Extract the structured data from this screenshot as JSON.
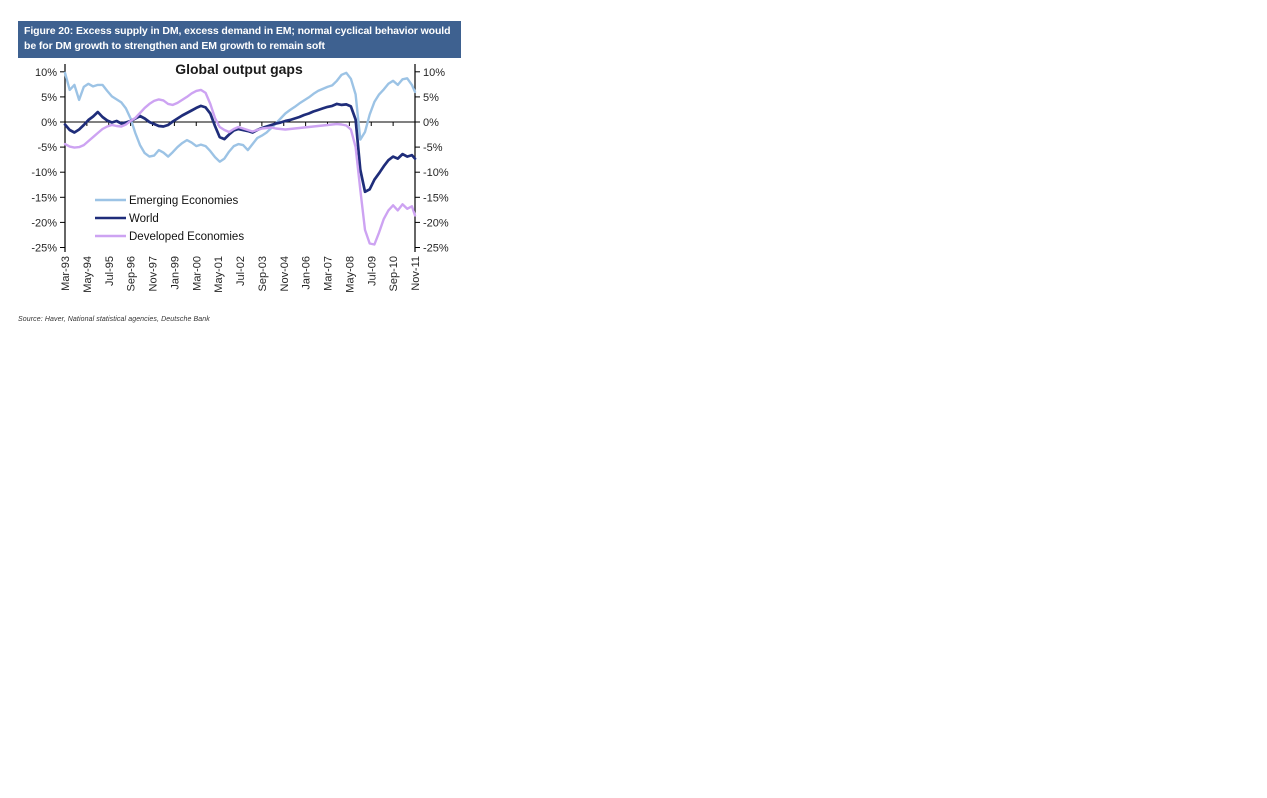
{
  "figure": {
    "caption_lines": [
      "Figure 20: Excess supply in DM, excess demand in EM; normal cyclical behavior would",
      "be for DM growth to strengthen and EM growth to remain soft"
    ],
    "source": "Source: Haver, National statistical agencies, Deutsche Bank"
  },
  "colors": {
    "caption_bg": "#3E6190",
    "caption_text": "#FFFFFF",
    "axis": "#000000",
    "tick_label": "#262626"
  },
  "chart_data": {
    "type": "line",
    "title": "Global output gaps",
    "xlabel": "",
    "ylabel": "",
    "y_tick_suffix": "%",
    "y_ticks": [
      10,
      5,
      0,
      -5,
      -10,
      -15,
      -20,
      -25
    ],
    "ylim": [
      -25,
      10
    ],
    "grid": false,
    "legend_position": "inside-lower-left",
    "x_tick_labels": [
      "Mar-93",
      "May-94",
      "Jul-95",
      "Sep-96",
      "Nov-97",
      "Jan-99",
      "Mar-00",
      "May-01",
      "Jul-02",
      "Sep-03",
      "Nov-04",
      "Jan-06",
      "Mar-07",
      "May-08",
      "Jul-09",
      "Sep-10",
      "Nov-11"
    ],
    "x_tick_months": [
      0,
      14,
      28,
      42,
      56,
      70,
      84,
      98,
      112,
      126,
      140,
      154,
      168,
      182,
      196,
      210,
      224
    ],
    "x_total_months": 224,
    "month_step": 3,
    "series": [
      {
        "name": "Emerging Economies",
        "color": "#9CC3E5",
        "width": 2.4,
        "values": [
          9.8,
          6.4,
          7.4,
          4.4,
          7.0,
          7.6,
          7.1,
          7.4,
          7.4,
          6.2,
          5.1,
          4.5,
          3.9,
          2.7,
          0.7,
          -2.2,
          -4.6,
          -6.2,
          -6.9,
          -6.7,
          -5.6,
          -6.1,
          -6.9,
          -6.0,
          -5.0,
          -4.2,
          -3.6,
          -4.1,
          -4.8,
          -4.5,
          -4.8,
          -5.8,
          -7.0,
          -7.9,
          -7.3,
          -5.9,
          -4.8,
          -4.4,
          -4.6,
          -5.6,
          -4.4,
          -3.2,
          -2.7,
          -2.1,
          -1.2,
          -0.3,
          0.7,
          1.7,
          2.4,
          3.0,
          3.7,
          4.3,
          4.9,
          5.6,
          6.2,
          6.6,
          7.0,
          7.3,
          8.2,
          9.4,
          9.8,
          8.6,
          5.5,
          -3.5,
          -2.0,
          1.5,
          4.0,
          5.5,
          6.5,
          7.6,
          8.2,
          7.4,
          8.5,
          8.7,
          7.4,
          6.0
        ]
      },
      {
        "name": "World",
        "color": "#1F2D7A",
        "width": 2.7,
        "values": [
          -0.5,
          -1.6,
          -2.1,
          -1.5,
          -0.6,
          0.4,
          1.1,
          2.0,
          1.0,
          0.3,
          -0.1,
          0.2,
          -0.3,
          -0.1,
          0.2,
          0.7,
          1.2,
          0.7,
          0.0,
          -0.4,
          -0.8,
          -0.9,
          -0.6,
          0.1,
          0.7,
          1.3,
          1.8,
          2.3,
          2.8,
          3.2,
          2.9,
          1.7,
          -0.8,
          -3.0,
          -3.4,
          -2.5,
          -1.7,
          -1.4,
          -1.6,
          -1.8,
          -2.1,
          -1.6,
          -1.2,
          -0.9,
          -0.6,
          -0.3,
          -0.1,
          0.2,
          0.4,
          0.7,
          1.0,
          1.4,
          1.7,
          2.1,
          2.4,
          2.7,
          3.0,
          3.2,
          3.6,
          3.4,
          3.5,
          3.1,
          0.5,
          -9.5,
          -13.9,
          -13.4,
          -11.5,
          -10.2,
          -8.8,
          -7.6,
          -6.9,
          -7.3,
          -6.4,
          -6.9,
          -6.6,
          -7.3
        ]
      },
      {
        "name": "Developed Economies",
        "color": "#CDA3F2",
        "width": 2.4,
        "values": [
          -4.4,
          -4.9,
          -5.1,
          -5.0,
          -4.6,
          -3.8,
          -3.0,
          -2.2,
          -1.4,
          -0.9,
          -0.6,
          -0.8,
          -0.9,
          -0.5,
          0.2,
          0.8,
          1.8,
          2.8,
          3.6,
          4.2,
          4.5,
          4.3,
          3.6,
          3.4,
          3.8,
          4.4,
          5.0,
          5.7,
          6.2,
          6.4,
          5.8,
          3.6,
          0.8,
          -1.0,
          -1.6,
          -2.0,
          -1.4,
          -1.0,
          -1.3,
          -1.6,
          -1.9,
          -1.6,
          -1.3,
          -1.2,
          -1.1,
          -1.3,
          -1.4,
          -1.5,
          -1.4,
          -1.3,
          -1.2,
          -1.1,
          -1.0,
          -0.9,
          -0.8,
          -0.7,
          -0.6,
          -0.5,
          -0.4,
          -0.5,
          -0.7,
          -1.5,
          -5.0,
          -13.5,
          -21.5,
          -24.2,
          -24.4,
          -22.0,
          -19.3,
          -17.6,
          -16.6,
          -17.6,
          -16.4,
          -17.3,
          -16.8,
          -18.6
        ]
      }
    ]
  }
}
